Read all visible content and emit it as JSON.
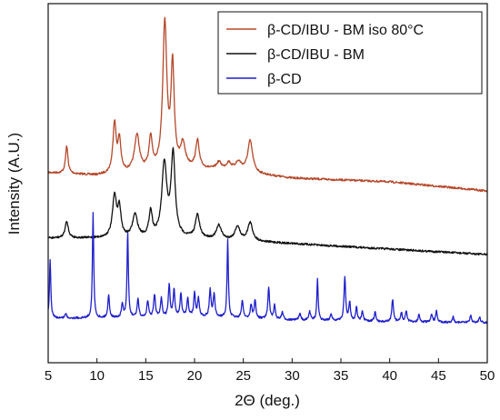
{
  "chart_data": {
    "type": "line",
    "xlabel": "2Θ (deg.)",
    "ylabel": "Intensity (A.U.)",
    "xlim": [
      5,
      50
    ],
    "x_ticks": [
      "5",
      "10",
      "15",
      "20",
      "25",
      "30",
      "35",
      "40",
      "45",
      "50"
    ],
    "y_ticks_labeled": false,
    "grid": false,
    "legend_position": "top-right",
    "series": [
      {
        "name": "β-CD/IBU - BM iso 80°C",
        "color": "#b5482a",
        "baseline": [
          [
            5,
            190
          ],
          [
            10,
            193
          ],
          [
            20,
            185
          ],
          [
            25,
            190
          ],
          [
            30,
            196
          ],
          [
            40,
            200
          ],
          [
            50,
            210
          ]
        ],
        "peaks": [
          [
            6.9,
            30,
            0.15
          ],
          [
            11.8,
            55,
            0.2
          ],
          [
            12.3,
            35,
            0.18
          ],
          [
            14.1,
            40,
            0.3
          ],
          [
            15.5,
            35,
            0.2
          ],
          [
            16.95,
            160,
            0.25
          ],
          [
            17.75,
            110,
            0.2
          ],
          [
            18.8,
            25,
            0.3
          ],
          [
            20.3,
            30,
            0.2
          ],
          [
            22.5,
            8,
            0.3
          ],
          [
            23.5,
            8,
            0.3
          ],
          [
            24.5,
            10,
            0.4
          ],
          [
            25.7,
            35,
            0.3
          ]
        ]
      },
      {
        "name": "β-CD/IBU - BM",
        "color": "#111111",
        "baseline": [
          [
            5,
            262
          ],
          [
            10,
            262
          ],
          [
            20,
            262
          ],
          [
            25,
            265
          ],
          [
            30,
            268
          ],
          [
            40,
            274
          ],
          [
            50,
            280
          ]
        ],
        "peaks": [
          [
            6.9,
            18,
            0.2
          ],
          [
            11.8,
            45,
            0.25
          ],
          [
            12.3,
            30,
            0.2
          ],
          [
            13.9,
            25,
            0.3
          ],
          [
            15.5,
            28,
            0.2
          ],
          [
            16.9,
            80,
            0.3
          ],
          [
            17.8,
            90,
            0.25
          ],
          [
            20.3,
            25,
            0.25
          ],
          [
            22.5,
            15,
            0.3
          ],
          [
            24.4,
            15,
            0.3
          ],
          [
            25.7,
            20,
            0.3
          ]
        ]
      },
      {
        "name": "β-CD",
        "color": "#1f1fcc",
        "baseline": [
          [
            5,
            350
          ],
          [
            10,
            350
          ],
          [
            20,
            348
          ],
          [
            25,
            350
          ],
          [
            30,
            352
          ],
          [
            40,
            354
          ],
          [
            50,
            355
          ]
        ],
        "peaks": [
          [
            5.2,
            65,
            0.08
          ],
          [
            6.8,
            5,
            0.1
          ],
          [
            9.6,
            115,
            0.08
          ],
          [
            11.2,
            25,
            0.1
          ],
          [
            12.6,
            15,
            0.1
          ],
          [
            13.15,
            95,
            0.08
          ],
          [
            14.2,
            20,
            0.1
          ],
          [
            15.2,
            18,
            0.1
          ],
          [
            15.9,
            25,
            0.1
          ],
          [
            16.6,
            20,
            0.1
          ],
          [
            17.4,
            35,
            0.1
          ],
          [
            17.9,
            30,
            0.1
          ],
          [
            18.6,
            25,
            0.1
          ],
          [
            19.3,
            20,
            0.1
          ],
          [
            20.0,
            25,
            0.1
          ],
          [
            20.4,
            20,
            0.1
          ],
          [
            21.6,
            30,
            0.1
          ],
          [
            22.0,
            25,
            0.1
          ],
          [
            23.4,
            85,
            0.08
          ],
          [
            24.9,
            20,
            0.1
          ],
          [
            25.8,
            15,
            0.1
          ],
          [
            26.2,
            20,
            0.1
          ],
          [
            27.6,
            35,
            0.1
          ],
          [
            28.2,
            15,
            0.1
          ],
          [
            29.0,
            8,
            0.1
          ],
          [
            30.8,
            8,
            0.1
          ],
          [
            31.8,
            10,
            0.1
          ],
          [
            32.6,
            45,
            0.08
          ],
          [
            34.0,
            8,
            0.1
          ],
          [
            35.4,
            48,
            0.1
          ],
          [
            35.9,
            20,
            0.1
          ],
          [
            36.6,
            15,
            0.1
          ],
          [
            37.2,
            10,
            0.1
          ],
          [
            38.5,
            10,
            0.1
          ],
          [
            40.3,
            25,
            0.1
          ],
          [
            41.2,
            10,
            0.1
          ],
          [
            41.7,
            12,
            0.1
          ],
          [
            43.0,
            8,
            0.1
          ],
          [
            44.3,
            8,
            0.1
          ],
          [
            44.8,
            12,
            0.1
          ],
          [
            46.5,
            6,
            0.1
          ],
          [
            48.3,
            8,
            0.1
          ],
          [
            49.2,
            6,
            0.1
          ]
        ]
      }
    ]
  }
}
